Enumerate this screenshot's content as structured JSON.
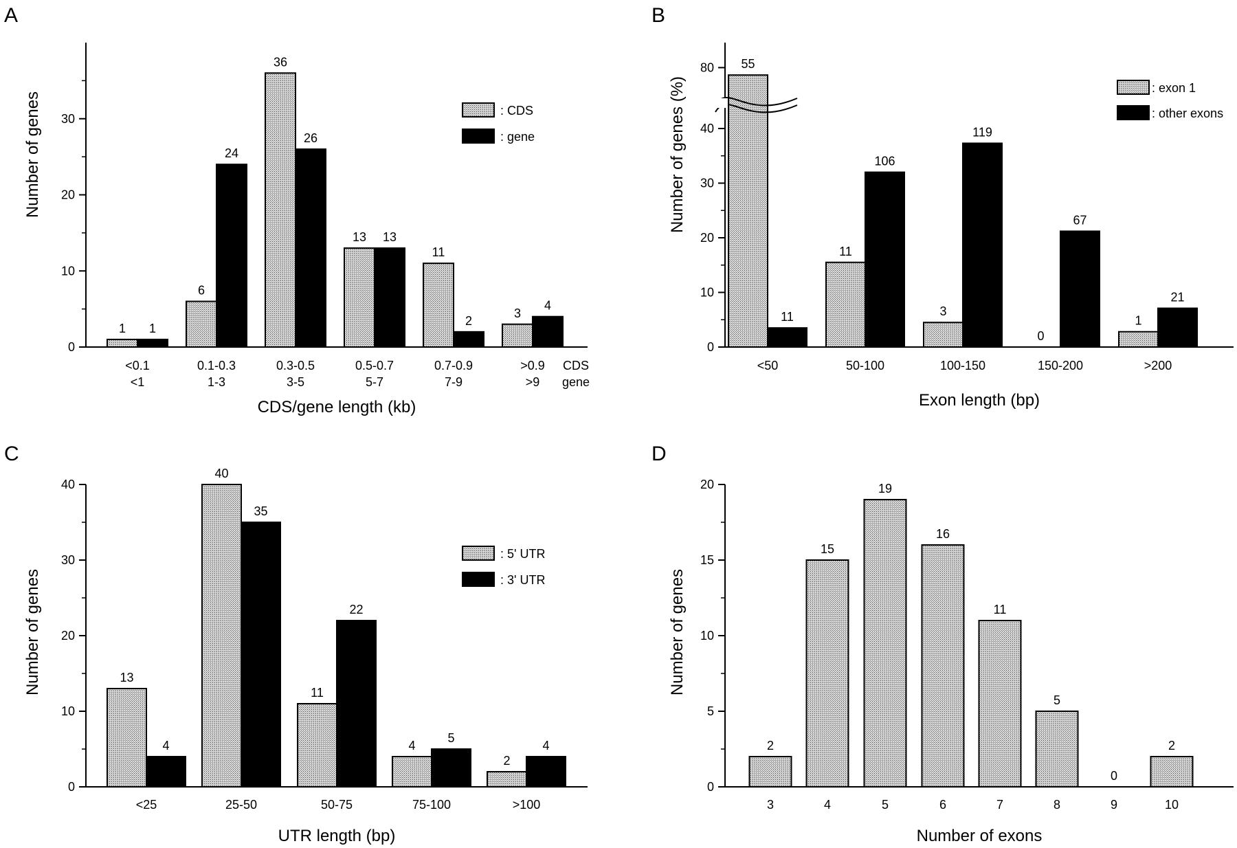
{
  "chart_data": [
    {
      "panel_letter": "A",
      "type": "bar",
      "categories": [
        "<0.1\n<1",
        "0.1-0.3\n1-3",
        "0.3-0.5\n3-5",
        "0.5-0.7\n5-7",
        "0.7-0.9\n7-9",
        ">0.9\n>9"
      ],
      "category_note": "CDS\ngene",
      "series": [
        {
          "name": ": CDS",
          "values": [
            1,
            6,
            36,
            13,
            11,
            3
          ],
          "fill": "hatch"
        },
        {
          "name": ": gene",
          "values": [
            1,
            24,
            26,
            13,
            2,
            4
          ],
          "fill": "black"
        }
      ],
      "data_labels": [
        [
          1,
          6,
          36,
          13,
          11,
          3
        ],
        [
          1,
          24,
          26,
          13,
          2,
          4
        ]
      ],
      "xlabel": "CDS/gene length (kb)",
      "ylabel": "Number of genes",
      "yticks": [
        0,
        10,
        20,
        30
      ],
      "ylim": [
        0,
        40
      ],
      "legend_position": "top-right",
      "grid": false
    },
    {
      "panel_letter": "B",
      "type": "bar",
      "categories": [
        "<50",
        "50-100",
        "100-150",
        "150-200",
        ">200"
      ],
      "series": [
        {
          "name": ": exon 1",
          "values": [
            78,
            15.5,
            4.5,
            0,
            2.8
          ],
          "fill": "hatch"
        },
        {
          "name": ": other exons",
          "values": [
            3.5,
            32,
            37.3,
            21.2,
            7.1
          ],
          "fill": "black"
        }
      ],
      "data_labels": [
        [
          55,
          11,
          3,
          0,
          1
        ],
        [
          11,
          106,
          119,
          67,
          21
        ]
      ],
      "xlabel": "Exon length (bp)",
      "ylabel": "Number of genes (%)",
      "yticks": [
        "0",
        "10",
        "20",
        "30",
        "40",
        "80"
      ],
      "ylim": [
        0,
        85
      ],
      "axis_break": true,
      "legend_position": "top-right",
      "grid": false
    },
    {
      "panel_letter": "C",
      "type": "bar",
      "categories": [
        "<25",
        "25-50",
        "50-75",
        "75-100",
        ">100"
      ],
      "series": [
        {
          "name": ": 5' UTR",
          "values": [
            13,
            40,
            11,
            4,
            2
          ],
          "fill": "hatch"
        },
        {
          "name": ": 3' UTR",
          "values": [
            4,
            35,
            22,
            5,
            4
          ],
          "fill": "black"
        }
      ],
      "data_labels": [
        [
          13,
          40,
          11,
          4,
          2
        ],
        [
          4,
          35,
          22,
          5,
          4
        ]
      ],
      "xlabel": "UTR length (bp)",
      "ylabel": "Number of genes",
      "yticks": [
        0,
        10,
        20,
        30,
        40
      ],
      "ylim": [
        0,
        40
      ],
      "legend_position": "top-right",
      "grid": false
    },
    {
      "panel_letter": "D",
      "type": "bar",
      "categories": [
        "3",
        "4",
        "5",
        "6",
        "7",
        "8",
        "9",
        "10"
      ],
      "series": [
        {
          "values": [
            2,
            15,
            19,
            16,
            11,
            5,
            0,
            2
          ],
          "fill": "hatch"
        }
      ],
      "data_labels": [
        [
          2,
          15,
          19,
          16,
          11,
          5,
          0,
          2
        ]
      ],
      "xlabel": "Number of exons",
      "ylabel": "Number of genes",
      "yticks": [
        0,
        5,
        10,
        15,
        20
      ],
      "ylim": [
        0,
        20
      ],
      "grid": false
    }
  ]
}
